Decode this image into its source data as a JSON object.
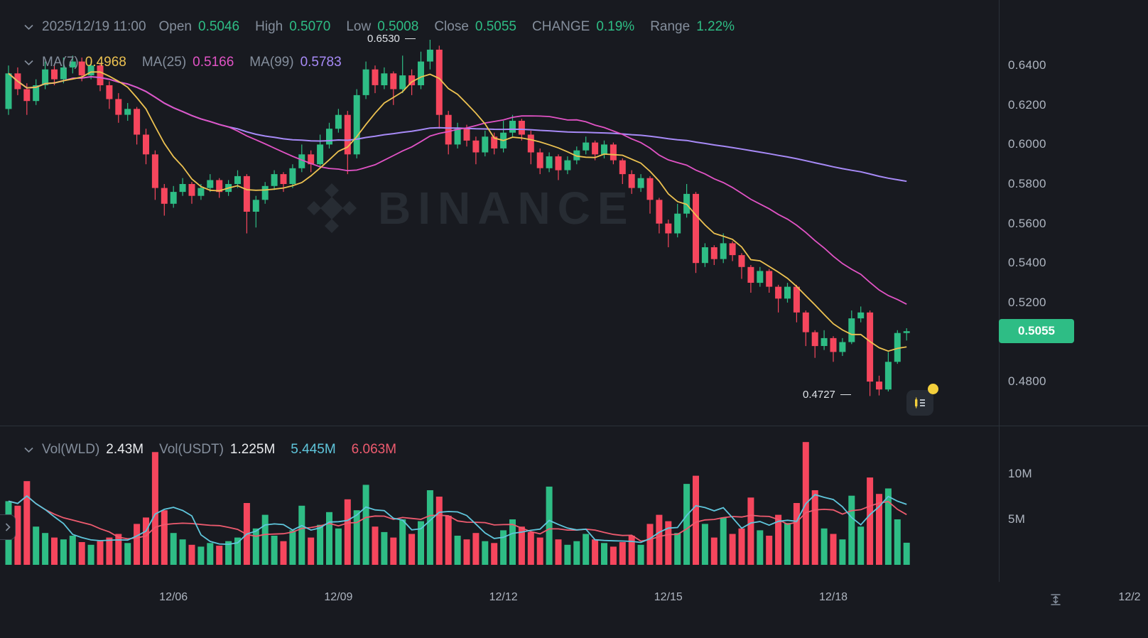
{
  "colors": {
    "background": "#181a20",
    "up": "#2ebd85",
    "down": "#f6465d",
    "ma7": "#edc251",
    "ma25": "#e153c5",
    "ma99": "#a78af7",
    "vol_ma_fast": "#5fc6dc",
    "vol_ma_slow": "#ee5b6f",
    "label_gray": "#848e9c",
    "value_white": "#eaecef",
    "axis_text": "#aeb5c0",
    "divider": "#2b3139",
    "badge_bg": "#2ebd85",
    "watermark": "#272c33",
    "event_dot": "#f3cf3c"
  },
  "ohlc_bar": {
    "timestamp": "2025/12/19 11:00",
    "open_label": "Open",
    "open": "0.5046",
    "high_label": "High",
    "high": "0.5070",
    "low_label": "Low",
    "low": "0.5008",
    "close_label": "Close",
    "close": "0.5055",
    "change_label": "CHANGE",
    "change": "0.19%",
    "range_label": "Range",
    "range": "1.22%"
  },
  "ma_bar": {
    "ma7_label": "MA(7)",
    "ma7": "0.4968",
    "ma25_label": "MA(25)",
    "ma25": "0.5166",
    "ma99_label": "MA(99)",
    "ma99": "0.5783"
  },
  "volume_bar": {
    "wld_label": "Vol(WLD)",
    "wld": "2.43M",
    "usdt_label": "Vol(USDT)",
    "usdt": "1.225M",
    "ma_fast": "5.445M",
    "ma_slow": "6.063M"
  },
  "annotations": {
    "high": "0.6530",
    "low": "0.4727"
  },
  "price_axis": {
    "labels": [
      "0.6400",
      "0.6200",
      "0.6000",
      "0.5800",
      "0.5600",
      "0.5400",
      "0.5200",
      "0.4800"
    ],
    "last_price": "0.5055"
  },
  "volume_axis": {
    "labels": [
      "10M",
      "5M"
    ]
  },
  "time_axis": {
    "labels": [
      "12/06",
      "12/09",
      "12/12",
      "12/15",
      "12/18",
      "12/2"
    ]
  },
  "watermark": {
    "text": "BINANCE"
  },
  "chart_data": {
    "type": "candlestick",
    "candle_format": [
      "open",
      "high",
      "low",
      "close"
    ],
    "price_axis_range": [
      0.457,
      0.673
    ],
    "volume_axis_range_m": [
      0,
      15.3
    ],
    "time_ticks": [
      "12/06",
      "12/09",
      "12/12",
      "12/15",
      "12/18"
    ],
    "high_of_view": 0.653,
    "low_of_view": 0.4727,
    "last_close": 0.5055,
    "price_overlays": [
      "MA(7)=0.4968",
      "MA(25)=0.5166",
      "MA(99)=0.5783"
    ],
    "volume_overlays": [
      "VolMA fast=5.445M",
      "VolMA slow=6.063M"
    ],
    "candles_ohlc": [
      [
        0.618,
        0.64,
        0.615,
        0.636
      ],
      [
        0.636,
        0.639,
        0.625,
        0.628
      ],
      [
        0.628,
        0.631,
        0.615,
        0.622
      ],
      [
        0.622,
        0.633,
        0.62,
        0.63
      ],
      [
        0.63,
        0.642,
        0.628,
        0.638
      ],
      [
        0.638,
        0.64,
        0.63,
        0.633
      ],
      [
        0.633,
        0.644,
        0.631,
        0.639
      ],
      [
        0.639,
        0.645,
        0.636,
        0.642
      ],
      [
        0.642,
        0.644,
        0.632,
        0.635
      ],
      [
        0.635,
        0.642,
        0.633,
        0.64
      ],
      [
        0.64,
        0.641,
        0.627,
        0.63
      ],
      [
        0.63,
        0.632,
        0.618,
        0.623
      ],
      [
        0.623,
        0.626,
        0.611,
        0.615
      ],
      [
        0.615,
        0.621,
        0.612,
        0.618
      ],
      [
        0.618,
        0.619,
        0.6,
        0.605
      ],
      [
        0.605,
        0.608,
        0.59,
        0.595
      ],
      [
        0.595,
        0.597,
        0.572,
        0.578
      ],
      [
        0.578,
        0.58,
        0.564,
        0.57
      ],
      [
        0.57,
        0.579,
        0.568,
        0.576
      ],
      [
        0.576,
        0.583,
        0.574,
        0.58
      ],
      [
        0.58,
        0.581,
        0.57,
        0.574
      ],
      [
        0.574,
        0.58,
        0.572,
        0.578
      ],
      [
        0.578,
        0.585,
        0.576,
        0.582
      ],
      [
        0.582,
        0.583,
        0.573,
        0.576
      ],
      [
        0.576,
        0.582,
        0.574,
        0.58
      ],
      [
        0.58,
        0.587,
        0.578,
        0.584
      ],
      [
        0.584,
        0.585,
        0.555,
        0.566
      ],
      [
        0.566,
        0.574,
        0.558,
        0.572
      ],
      [
        0.572,
        0.581,
        0.57,
        0.579
      ],
      [
        0.579,
        0.587,
        0.577,
        0.585
      ],
      [
        0.585,
        0.586,
        0.576,
        0.58
      ],
      [
        0.58,
        0.59,
        0.578,
        0.588
      ],
      [
        0.588,
        0.6,
        0.586,
        0.595
      ],
      [
        0.595,
        0.597,
        0.586,
        0.59
      ],
      [
        0.59,
        0.605,
        0.588,
        0.6
      ],
      [
        0.6,
        0.611,
        0.598,
        0.608
      ],
      [
        0.608,
        0.618,
        0.606,
        0.615
      ],
      [
        0.615,
        0.617,
        0.585,
        0.595
      ],
      [
        0.595,
        0.628,
        0.593,
        0.625
      ],
      [
        0.625,
        0.642,
        0.623,
        0.638
      ],
      [
        0.638,
        0.64,
        0.626,
        0.63
      ],
      [
        0.63,
        0.639,
        0.628,
        0.636
      ],
      [
        0.636,
        0.637,
        0.62,
        0.628
      ],
      [
        0.628,
        0.645,
        0.626,
        0.635
      ],
      [
        0.635,
        0.638,
        0.625,
        0.63
      ],
      [
        0.63,
        0.647,
        0.628,
        0.642
      ],
      [
        0.642,
        0.653,
        0.638,
        0.648
      ],
      [
        0.648,
        0.65,
        0.608,
        0.615
      ],
      [
        0.615,
        0.617,
        0.595,
        0.6
      ],
      [
        0.6,
        0.611,
        0.598,
        0.608
      ],
      [
        0.608,
        0.61,
        0.599,
        0.602
      ],
      [
        0.602,
        0.604,
        0.59,
        0.596
      ],
      [
        0.596,
        0.607,
        0.594,
        0.604
      ],
      [
        0.604,
        0.606,
        0.595,
        0.598
      ],
      [
        0.598,
        0.612,
        0.596,
        0.606
      ],
      [
        0.606,
        0.615,
        0.604,
        0.612
      ],
      [
        0.612,
        0.613,
        0.602,
        0.605
      ],
      [
        0.605,
        0.607,
        0.59,
        0.596
      ],
      [
        0.596,
        0.598,
        0.585,
        0.588
      ],
      [
        0.588,
        0.596,
        0.586,
        0.594
      ],
      [
        0.594,
        0.595,
        0.582,
        0.587
      ],
      [
        0.587,
        0.594,
        0.585,
        0.592
      ],
      [
        0.592,
        0.599,
        0.59,
        0.597
      ],
      [
        0.597,
        0.604,
        0.595,
        0.601
      ],
      [
        0.601,
        0.602,
        0.592,
        0.595
      ],
      [
        0.595,
        0.602,
        0.593,
        0.6
      ],
      [
        0.6,
        0.601,
        0.59,
        0.592
      ],
      [
        0.592,
        0.593,
        0.58,
        0.585
      ],
      [
        0.585,
        0.587,
        0.575,
        0.578
      ],
      [
        0.578,
        0.585,
        0.576,
        0.583
      ],
      [
        0.583,
        0.584,
        0.565,
        0.572
      ],
      [
        0.572,
        0.573,
        0.555,
        0.56
      ],
      [
        0.56,
        0.562,
        0.548,
        0.555
      ],
      [
        0.555,
        0.57,
        0.553,
        0.565
      ],
      [
        0.565,
        0.58,
        0.563,
        0.575
      ],
      [
        0.575,
        0.576,
        0.535,
        0.54
      ],
      [
        0.54,
        0.55,
        0.538,
        0.548
      ],
      [
        0.548,
        0.549,
        0.539,
        0.542
      ],
      [
        0.542,
        0.555,
        0.54,
        0.55
      ],
      [
        0.55,
        0.551,
        0.541,
        0.544
      ],
      [
        0.544,
        0.545,
        0.532,
        0.538
      ],
      [
        0.538,
        0.539,
        0.525,
        0.53
      ],
      [
        0.53,
        0.538,
        0.528,
        0.536
      ],
      [
        0.536,
        0.537,
        0.525,
        0.528
      ],
      [
        0.528,
        0.529,
        0.515,
        0.522
      ],
      [
        0.522,
        0.53,
        0.52,
        0.528
      ],
      [
        0.528,
        0.529,
        0.51,
        0.515
      ],
      [
        0.515,
        0.516,
        0.498,
        0.505
      ],
      [
        0.505,
        0.506,
        0.492,
        0.498
      ],
      [
        0.498,
        0.506,
        0.496,
        0.502
      ],
      [
        0.502,
        0.503,
        0.49,
        0.495
      ],
      [
        0.495,
        0.502,
        0.493,
        0.5
      ],
      [
        0.5,
        0.516,
        0.499,
        0.512
      ],
      [
        0.512,
        0.518,
        0.51,
        0.515
      ],
      [
        0.515,
        0.516,
        0.4727,
        0.48
      ],
      [
        0.48,
        0.483,
        0.473,
        0.476
      ],
      [
        0.476,
        0.495,
        0.475,
        0.49
      ],
      [
        0.49,
        0.506,
        0.489,
        0.5046
      ],
      [
        0.5046,
        0.507,
        0.5008,
        0.5055
      ]
    ],
    "volumes_m": [
      7.0,
      6.5,
      9.2,
      4.2,
      3.5,
      3.0,
      2.8,
      3.2,
      2.5,
      2.2,
      2.6,
      3.0,
      3.4,
      2.4,
      4.5,
      5.2,
      12.4,
      6.0,
      3.5,
      2.8,
      2.2,
      2.0,
      2.4,
      2.1,
      2.6,
      3.0,
      6.8,
      4.0,
      5.5,
      3.2,
      2.6,
      3.8,
      6.5,
      3.0,
      4.4,
      5.8,
      4.0,
      7.2,
      6.0,
      8.8,
      4.2,
      3.6,
      3.0,
      5.0,
      3.4,
      4.8,
      8.2,
      7.5,
      5.4,
      3.2,
      2.8,
      3.5,
      2.6,
      2.4,
      3.8,
      5.0,
      4.2,
      3.6,
      3.0,
      8.6,
      2.8,
      2.2,
      2.6,
      3.4,
      2.8,
      2.4,
      2.0,
      2.5,
      3.2,
      2.2,
      4.5,
      5.5,
      4.8,
      3.5,
      8.9,
      9.8,
      4.5,
      3.0,
      5.2,
      3.4,
      4.0,
      7.4,
      3.8,
      3.2,
      5.5,
      4.6,
      6.8,
      13.5,
      8.2,
      4.0,
      3.4,
      2.8,
      7.6,
      4.2,
      9.6,
      7.8,
      8.4,
      5.0,
      2.43
    ]
  }
}
